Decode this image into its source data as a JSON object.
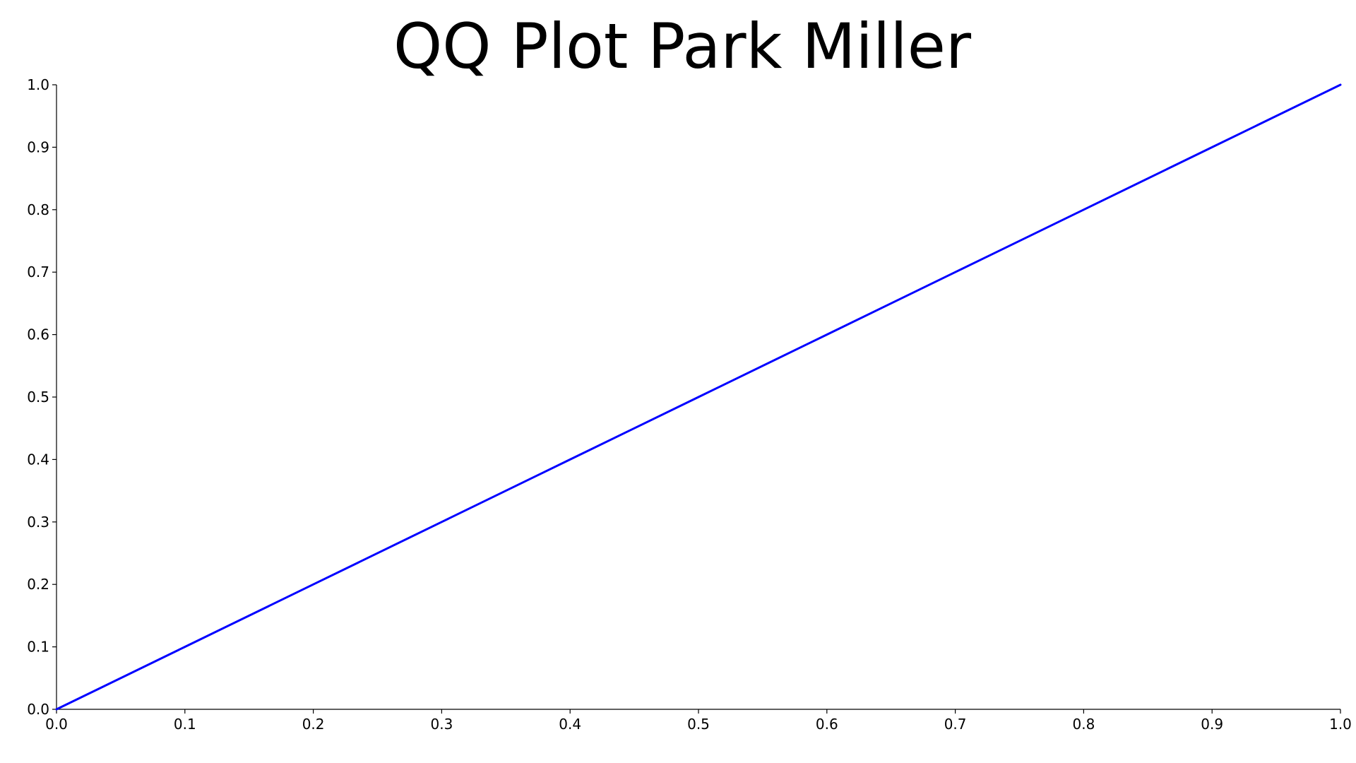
{
  "chart_data": {
    "type": "line",
    "title": "QQ Plot Park Miller",
    "xlabel": "",
    "ylabel": "",
    "xlim": [
      0.0,
      1.0
    ],
    "ylim": [
      0.0,
      1.0
    ],
    "x_ticks": [
      "0.0",
      "0.1",
      "0.2",
      "0.3",
      "0.4",
      "0.5",
      "0.6",
      "0.7",
      "0.8",
      "0.9",
      "1.0"
    ],
    "y_ticks": [
      "0.0",
      "0.1",
      "0.2",
      "0.3",
      "0.4",
      "0.5",
      "0.6",
      "0.7",
      "0.8",
      "0.9",
      "1.0"
    ],
    "grid": false,
    "legend": "none",
    "series": [
      {
        "color": "#0000ff",
        "x": [
          0.0,
          0.1,
          0.2,
          0.3,
          0.4,
          0.5,
          0.6,
          0.7,
          0.8,
          0.9,
          1.0
        ],
        "y": [
          0.0,
          0.1,
          0.2,
          0.3,
          0.4,
          0.5,
          0.6,
          0.7,
          0.8,
          0.9,
          1.0
        ]
      }
    ]
  }
}
